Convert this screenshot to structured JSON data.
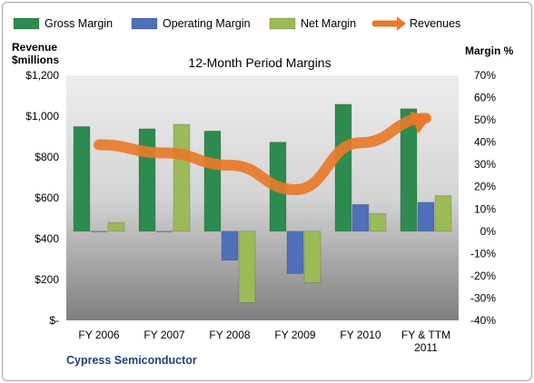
{
  "chart_data": {
    "type": "bar",
    "title": "12-Month Period Margins",
    "categories": [
      "FY 2006",
      "FY 2007",
      "FY 2008",
      "FY 2009",
      "FY 2010",
      "FY & TTM 2011"
    ],
    "category_lines": [
      [
        "FY 2006"
      ],
      [
        "FY 2007"
      ],
      [
        "FY 2008"
      ],
      [
        "FY 2009"
      ],
      [
        "FY 2010"
      ],
      [
        "FY & TTM",
        "2011"
      ]
    ],
    "series": [
      {
        "name": "Gross Margin",
        "type": "bar",
        "axis": "right",
        "color": "#2e8b4f",
        "values": [
          47,
          46,
          45,
          40,
          57,
          55
        ]
      },
      {
        "name": "Operating Margin",
        "type": "bar",
        "axis": "right",
        "color": "#4f6fb8",
        "values": [
          0,
          0,
          -13,
          -19,
          12,
          13
        ]
      },
      {
        "name": "Net Margin",
        "type": "bar",
        "axis": "right",
        "color": "#9bbb59",
        "values": [
          4,
          48,
          -32,
          -23,
          8,
          16
        ]
      },
      {
        "name": "Revenues",
        "type": "line",
        "axis": "left",
        "color": "#e8792a",
        "values": [
          860,
          820,
          760,
          640,
          870,
          990
        ]
      }
    ],
    "left_axis": {
      "label_lines": [
        "Revenue",
        "$millions"
      ],
      "ylim": [
        0,
        1200
      ],
      "ticks": [
        "$-",
        "$200",
        "$400",
        "$600",
        "$800",
        "$1,000",
        "$1,200"
      ]
    },
    "right_axis": {
      "label": "Margin %",
      "ylim": [
        -40,
        70
      ],
      "ticks": [
        "-40%",
        "-30%",
        "-20%",
        "-10%",
        "0%",
        "10%",
        "20%",
        "30%",
        "40%",
        "50%",
        "60%",
        "70%"
      ]
    },
    "legend_position": "top",
    "grid": false,
    "footnote": "Cypress Semiconductor"
  }
}
